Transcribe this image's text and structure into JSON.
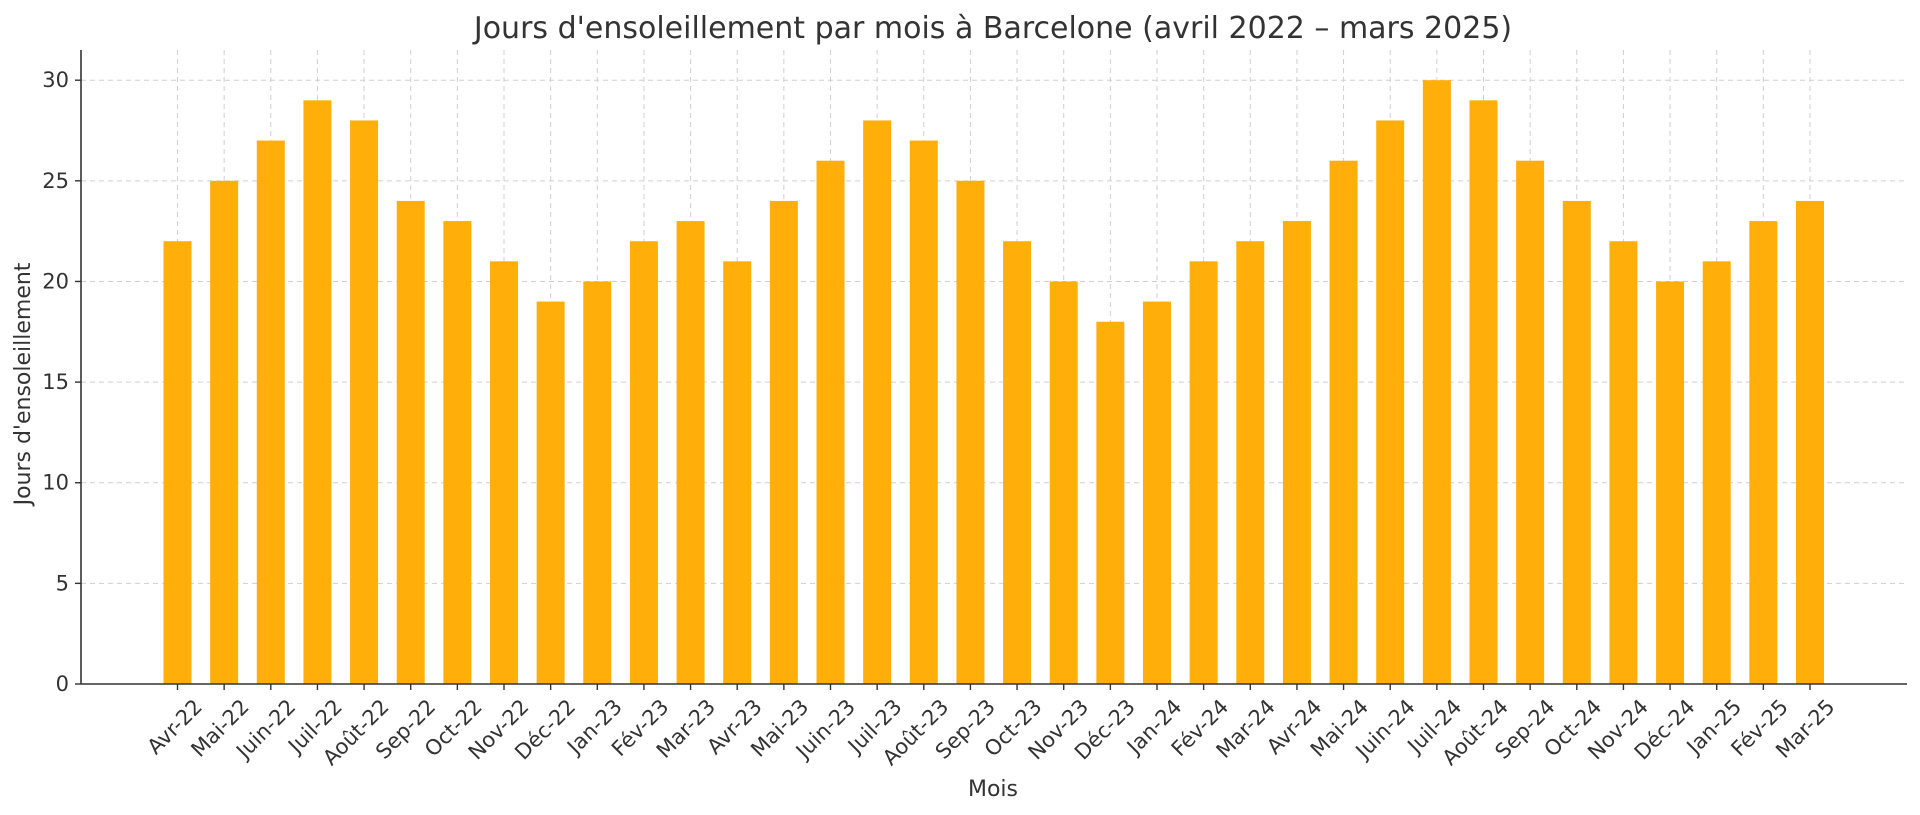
{
  "chart_data": {
    "type": "bar",
    "title": "Jours d'ensoleillement par mois à Barcelone (avril 2022 – mars 2025)",
    "xlabel": "Mois",
    "ylabel": "Jours d'ensoleillement",
    "ylim": [
      0,
      31.5
    ],
    "yticks": [
      0,
      5,
      10,
      15,
      20,
      25,
      30
    ],
    "grid": true,
    "bar_color": "#FFAE0A",
    "categories": [
      "Avr-22",
      "Mai-22",
      "Juin-22",
      "Juil-22",
      "Août-22",
      "Sep-22",
      "Oct-22",
      "Nov-22",
      "Déc-22",
      "Jan-23",
      "Fév-23",
      "Mar-23",
      "Avr-23",
      "Mai-23",
      "Juin-23",
      "Juil-23",
      "Août-23",
      "Sep-23",
      "Oct-23",
      "Nov-23",
      "Déc-23",
      "Jan-24",
      "Fév-24",
      "Mar-24",
      "Avr-24",
      "Mai-24",
      "Juin-24",
      "Juil-24",
      "Août-24",
      "Sep-24",
      "Oct-24",
      "Nov-24",
      "Déc-24",
      "Jan-25",
      "Fév-25",
      "Mar-25"
    ],
    "values": [
      22,
      25,
      27,
      29,
      28,
      24,
      23,
      21,
      19,
      20,
      22,
      23,
      21,
      24,
      26,
      28,
      27,
      25,
      22,
      20,
      18,
      19,
      21,
      22,
      23,
      26,
      28,
      30,
      29,
      26,
      24,
      22,
      20,
      21,
      23,
      24
    ]
  }
}
